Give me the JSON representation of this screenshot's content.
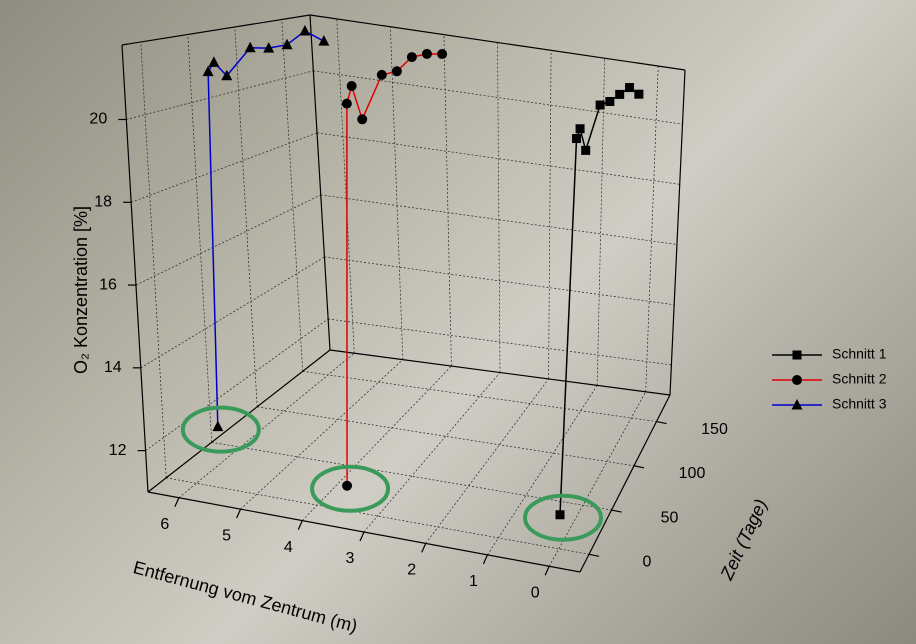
{
  "chart_data": {
    "type": "scatter3d",
    "x_label": "Entfernung vom Zentrum (m)",
    "y_label": "Zeit (Tage)",
    "z_label": "O₂ Konzentration [%]",
    "xlim": [
      -0.5,
      6.5
    ],
    "xticks": [
      0,
      1,
      2,
      3,
      4,
      5,
      6
    ],
    "ylim": [
      -20,
      180
    ],
    "yticks": [
      0,
      50,
      100,
      150
    ],
    "zlim": [
      11,
      21.8
    ],
    "zticks": [
      12,
      14,
      16,
      18,
      20
    ],
    "grid": true,
    "legend": "right",
    "series": [
      {
        "name": "Schnitt 1",
        "color": "#000000",
        "marker": "square",
        "distance": 0,
        "time": [
          0,
          7,
          14,
          28,
          56,
          77,
          98,
          119,
          140
        ],
        "values": [
          11.8,
          20.6,
          20.8,
          20.2,
          21.2,
          21.2,
          21.3,
          21.4,
          21.1
        ]
      },
      {
        "name": "Schnitt 2",
        "color": "#e00000",
        "marker": "circle",
        "distance": 3.5,
        "time": [
          0,
          7,
          14,
          28,
          56,
          77,
          98,
          119,
          140
        ],
        "values": [
          11.6,
          20.8,
          21.2,
          20.3,
          21.3,
          21.3,
          21.6,
          21.6,
          21.5
        ]
      },
      {
        "name": "Schnitt 3",
        "color": "#0000cc",
        "marker": "triangle",
        "distance": 5.6,
        "time": [
          0,
          7,
          14,
          28,
          56,
          77,
          98,
          119,
          140
        ],
        "values": [
          12.5,
          21.2,
          21.4,
          21.0,
          21.6,
          21.5,
          21.5,
          21.8,
          21.4
        ]
      }
    ]
  }
}
